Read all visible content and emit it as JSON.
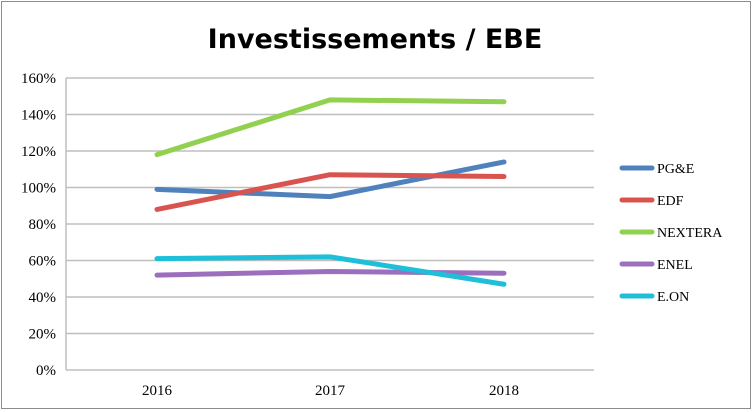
{
  "chart_data": {
    "type": "line",
    "title": "Investissements / EBE",
    "xlabel": "",
    "ylabel": "",
    "categories": [
      "2016",
      "2017",
      "2018"
    ],
    "ylim": [
      0,
      160
    ],
    "yticks": [
      "0%",
      "20%",
      "40%",
      "60%",
      "80%",
      "100%",
      "120%",
      "140%",
      "160%"
    ],
    "grid": true,
    "legend_position": "right",
    "series": [
      {
        "name": "PG&E",
        "color": "#4f81bd",
        "values": [
          99,
          95,
          114
        ]
      },
      {
        "name": "EDF",
        "color": "#d9534f",
        "values": [
          88,
          107,
          106
        ]
      },
      {
        "name": "NEXTERA",
        "color": "#92d050",
        "values": [
          118,
          148,
          147
        ]
      },
      {
        "name": "ENEL",
        "color": "#9b6fbd",
        "values": [
          52,
          54,
          53
        ]
      },
      {
        "name": "E.ON",
        "color": "#1fbfd9",
        "values": [
          61,
          62,
          47
        ]
      }
    ]
  }
}
